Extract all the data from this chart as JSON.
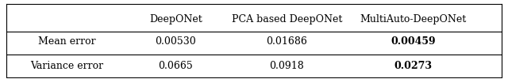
{
  "col_headers": [
    "",
    "DeepONet",
    "PCA based DeepONet",
    "MultiAuto-DeepONet"
  ],
  "rows": [
    [
      "Mean error",
      "0.00530",
      "0.01686",
      "0.00459"
    ],
    [
      "Variance error",
      "0.0665",
      "0.0918",
      "0.0273"
    ]
  ],
  "bold_last_col": true,
  "background_color": "#ffffff",
  "border_color": "#000000",
  "font_size": 9,
  "header_font_size": 9
}
